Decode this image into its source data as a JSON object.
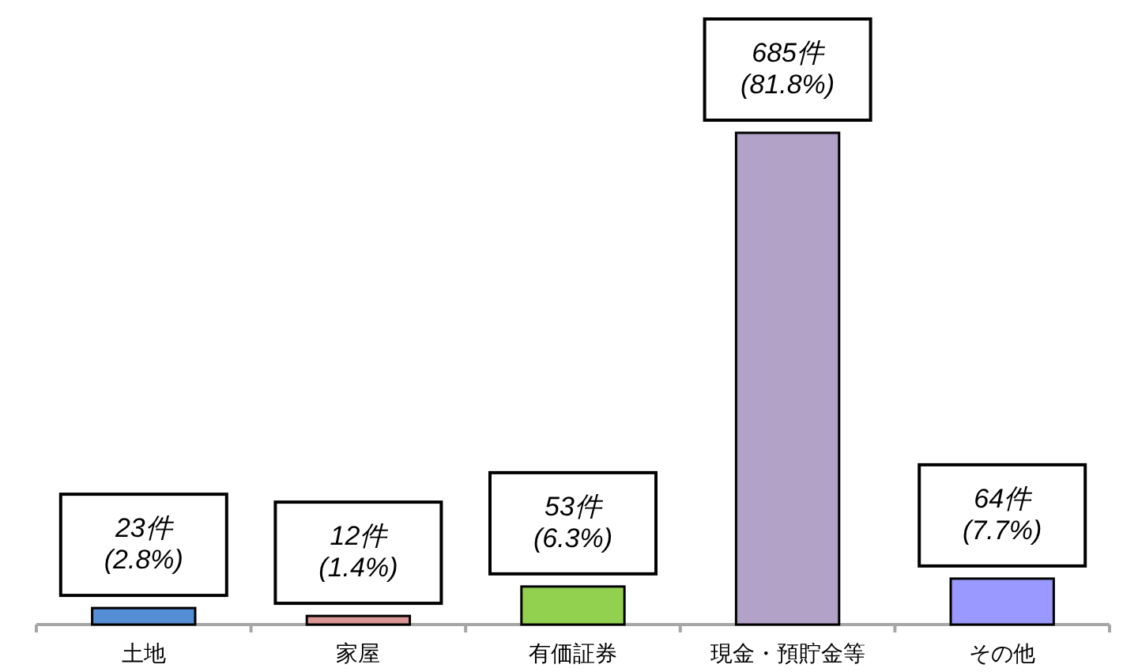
{
  "chart_data": {
    "type": "bar",
    "categories": [
      "土地",
      "家屋",
      "有価証券",
      "現金・預貯金等",
      "その他"
    ],
    "values": [
      23,
      12,
      53,
      685,
      64
    ],
    "colors": [
      "#558ed5",
      "#d99694",
      "#92d050",
      "#b3a2c7",
      "#9999ff"
    ],
    "value_labels": [
      "23件\n(2.8%)",
      "12件\n(1.4%)",
      "53件\n(6.3%)",
      "685件\n(81.8%)",
      "64件\n(7.7%)"
    ]
  }
}
